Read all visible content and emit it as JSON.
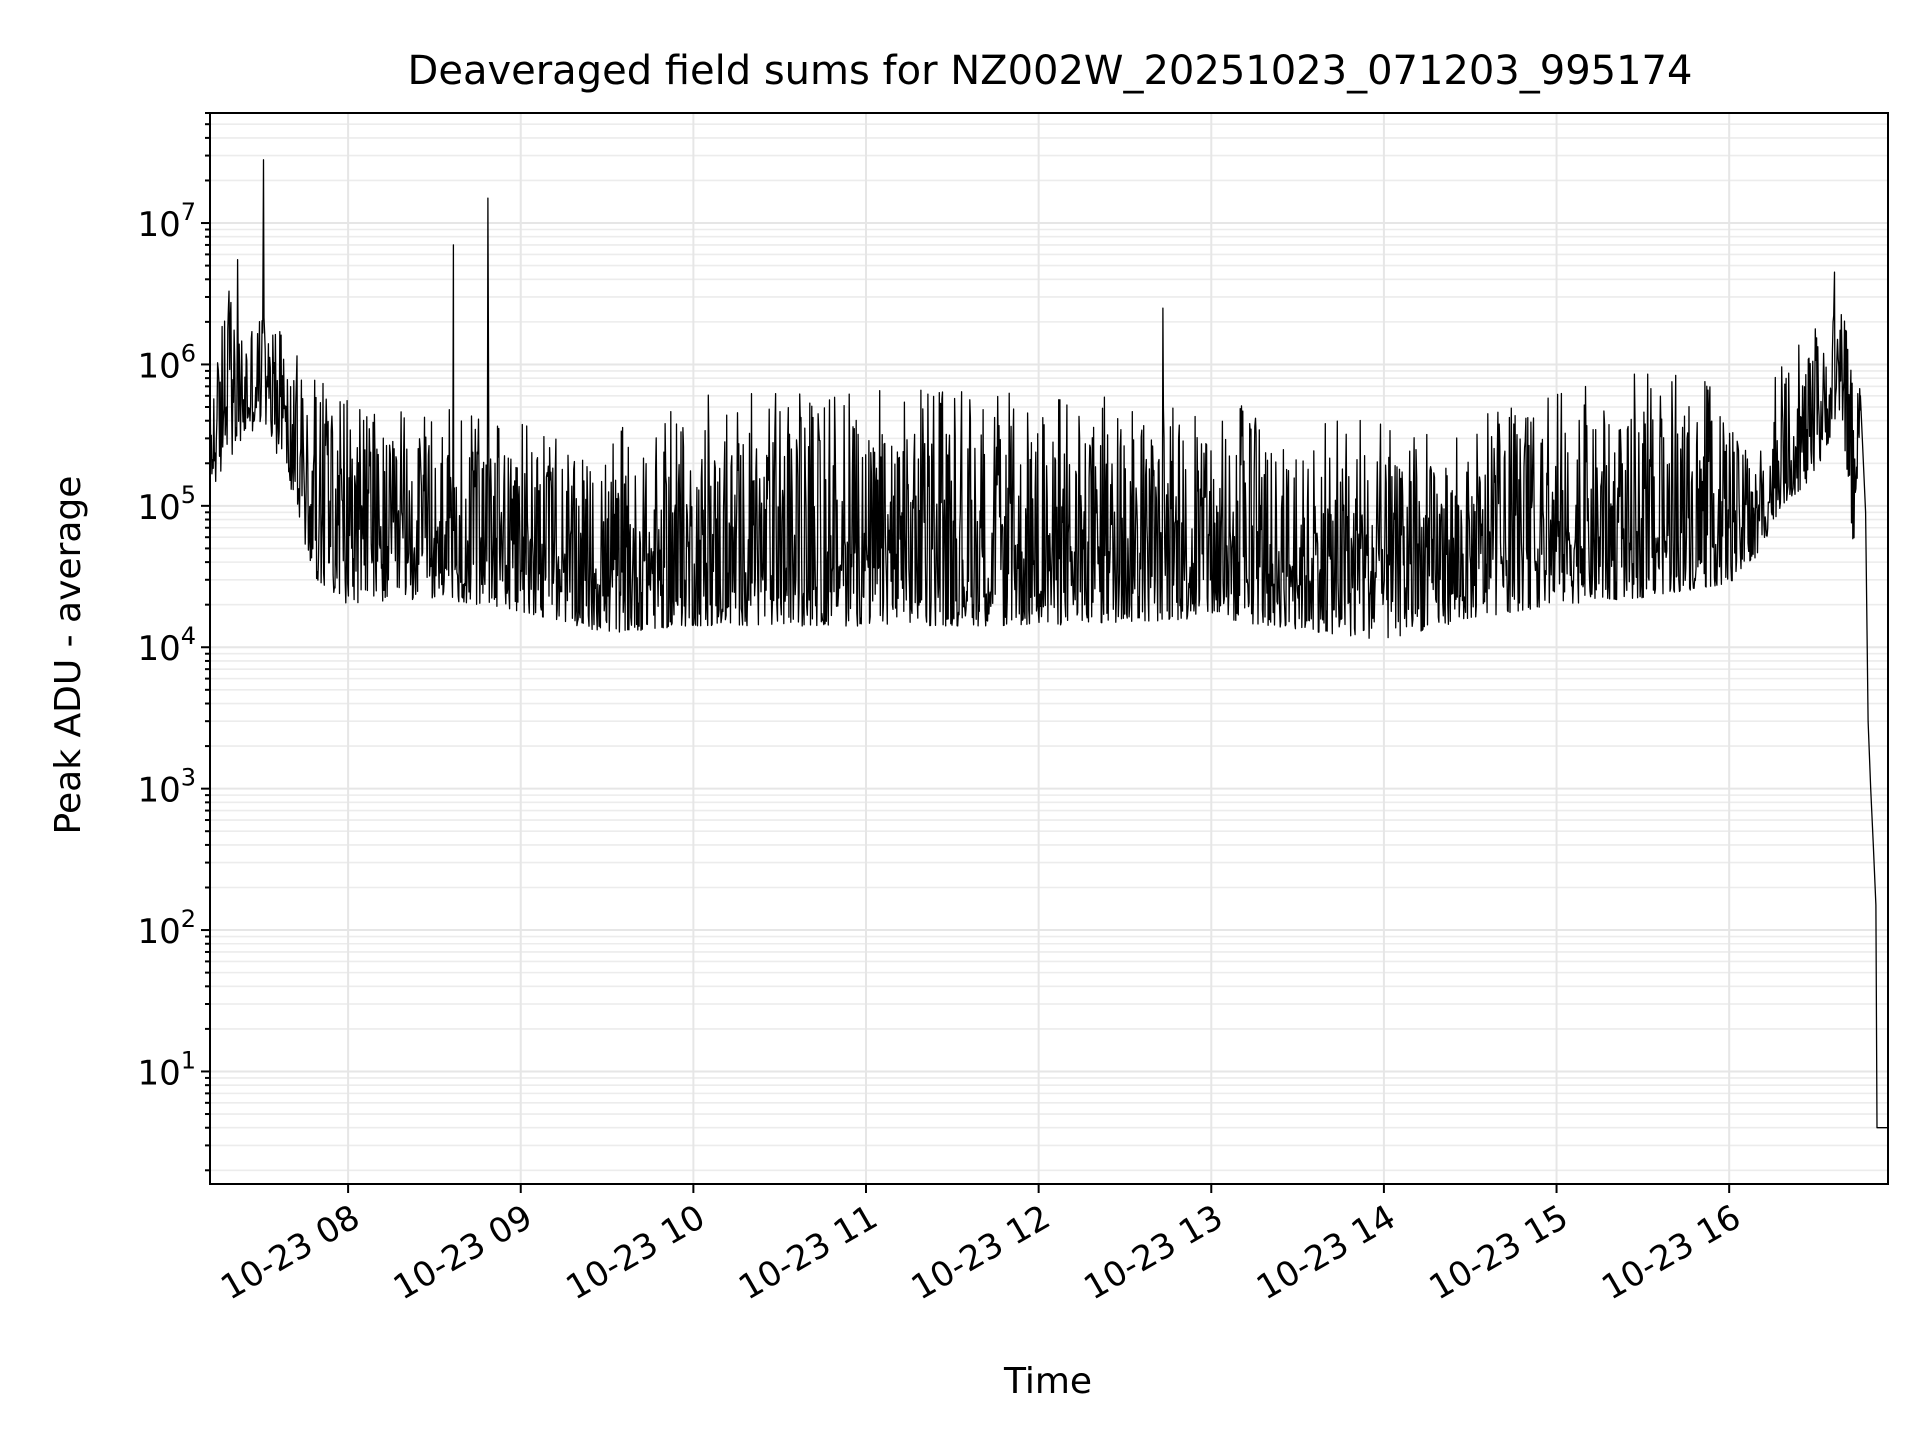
{
  "chart_data": {
    "type": "line",
    "title": "Deaveraged field sums for NZ002W_20251023_071203_995174",
    "xlabel": "Time",
    "ylabel": "Peak ADU - average",
    "yscale": "log",
    "ylim": [
      1.6,
      60000000
    ],
    "xlim_hours": [
      7.2,
      16.92
    ],
    "grid": true,
    "line_color": "#000000",
    "x_ticks": [
      {
        "hour": 8,
        "label": "10-23 08"
      },
      {
        "hour": 9,
        "label": "10-23 09"
      },
      {
        "hour": 10,
        "label": "10-23 10"
      },
      {
        "hour": 11,
        "label": "10-23 11"
      },
      {
        "hour": 12,
        "label": "10-23 12"
      },
      {
        "hour": 13,
        "label": "10-23 13"
      },
      {
        "hour": 14,
        "label": "10-23 14"
      },
      {
        "hour": 15,
        "label": "10-23 15"
      },
      {
        "hour": 16,
        "label": "10-23 16"
      }
    ],
    "y_ticks": [
      {
        "exp": 1,
        "base": "10",
        "sup": "1"
      },
      {
        "exp": 2,
        "base": "10",
        "sup": "2"
      },
      {
        "exp": 3,
        "base": "10",
        "sup": "3"
      },
      {
        "exp": 4,
        "base": "10",
        "sup": "4"
      },
      {
        "exp": 5,
        "base": "10",
        "sup": "5"
      },
      {
        "exp": 6,
        "base": "10",
        "sup": "6"
      },
      {
        "exp": 7,
        "base": "10",
        "sup": "7"
      }
    ],
    "series": [
      {
        "name": "Peak ADU - average",
        "envelope": [
          {
            "hour": 7.2,
            "log_low": 5.1,
            "log_high": 6.2
          },
          {
            "hour": 7.35,
            "log_low": 5.4,
            "log_high": 6.5
          },
          {
            "hour": 7.5,
            "log_low": 5.6,
            "log_high": 6.6
          },
          {
            "hour": 7.65,
            "log_low": 5.2,
            "log_high": 6.2
          },
          {
            "hour": 7.8,
            "log_low": 4.5,
            "log_high": 5.9
          },
          {
            "hour": 8.0,
            "log_low": 4.3,
            "log_high": 5.8
          },
          {
            "hour": 8.5,
            "log_low": 4.35,
            "log_high": 5.7
          },
          {
            "hour": 9.0,
            "log_low": 4.25,
            "log_high": 5.6
          },
          {
            "hour": 9.5,
            "log_low": 4.1,
            "log_high": 5.5
          },
          {
            "hour": 10.0,
            "log_low": 4.15,
            "log_high": 5.8
          },
          {
            "hour": 11.0,
            "log_low": 4.15,
            "log_high": 5.85
          },
          {
            "hour": 12.0,
            "log_low": 4.15,
            "log_high": 5.8
          },
          {
            "hour": 13.0,
            "log_low": 4.2,
            "log_high": 5.75
          },
          {
            "hour": 14.0,
            "log_low": 4.05,
            "log_high": 5.6
          },
          {
            "hour": 14.5,
            "log_low": 4.2,
            "log_high": 5.6
          },
          {
            "hour": 15.0,
            "log_low": 4.3,
            "log_high": 5.85
          },
          {
            "hour": 15.5,
            "log_low": 4.35,
            "log_high": 5.95
          },
          {
            "hour": 16.0,
            "log_low": 4.45,
            "log_high": 5.9
          },
          {
            "hour": 16.15,
            "log_low": 4.6,
            "log_high": 5.3
          },
          {
            "hour": 16.3,
            "log_low": 5.0,
            "log_high": 6.1
          },
          {
            "hour": 16.5,
            "log_low": 5.2,
            "log_high": 6.3
          },
          {
            "hour": 16.65,
            "log_low": 5.7,
            "log_high": 6.4
          },
          {
            "hour": 16.72,
            "log_low": 4.7,
            "log_high": 6.2
          },
          {
            "hour": 16.76,
            "log_low": 5.6,
            "log_high": 5.8
          }
        ],
        "spikes": [
          {
            "hour": 7.31,
            "value": 3300000
          },
          {
            "hour": 7.36,
            "value": 5500000
          },
          {
            "hour": 7.51,
            "value": 28000000
          },
          {
            "hour": 8.61,
            "value": 7000000
          },
          {
            "hour": 8.81,
            "value": 15000000
          },
          {
            "hour": 12.72,
            "value": 2500000
          },
          {
            "hour": 16.61,
            "value": 4500000
          }
        ],
        "tail": [
          {
            "hour": 16.76,
            "value": 600000
          },
          {
            "hour": 16.79,
            "value": 90000
          },
          {
            "hour": 16.805,
            "value": 3000
          },
          {
            "hour": 16.82,
            "value": 1000
          },
          {
            "hour": 16.835,
            "value": 400
          },
          {
            "hour": 16.85,
            "value": 150
          },
          {
            "hour": 16.856,
            "value": 4
          },
          {
            "hour": 16.92,
            "value": 4
          }
        ]
      }
    ]
  }
}
